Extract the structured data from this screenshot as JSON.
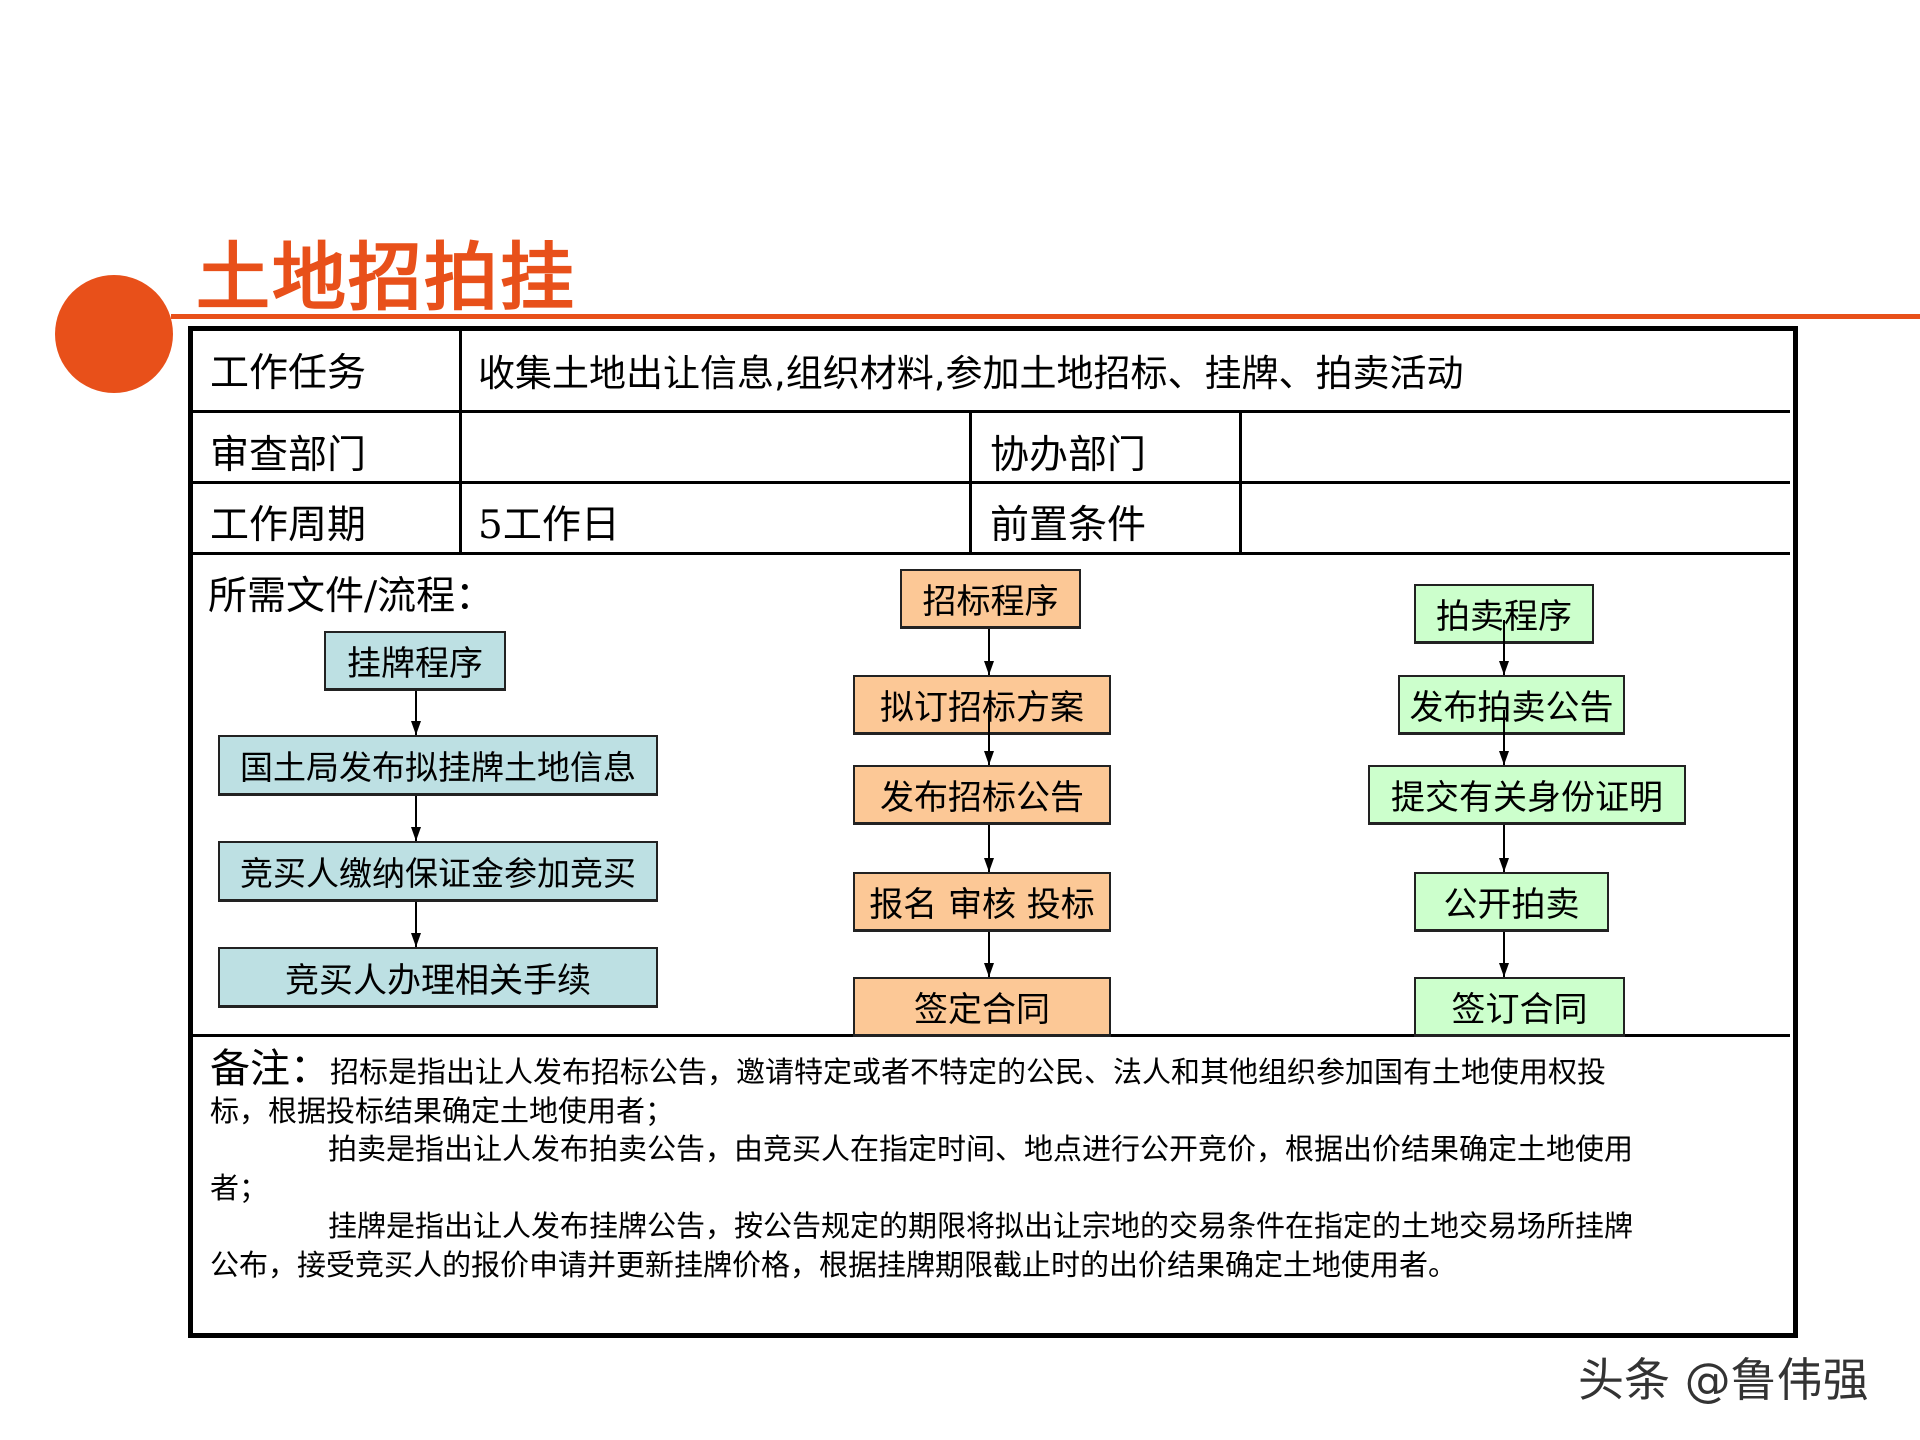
{
  "title": "土地招拍挂",
  "table": {
    "task_label": "工作任务",
    "task_value": "收集土地出让信息,组织材料,参加土地招标、挂牌、拍卖活动",
    "review_dept_label": "审查部门",
    "review_dept_value": "",
    "assist_dept_label": "协办部门",
    "assist_dept_value": "",
    "cycle_label": "工作周期",
    "cycle_value": "5工作日",
    "precondition_label": "前置条件",
    "precondition_value": "",
    "docs_label": "所需文件/流程："
  },
  "flows": {
    "listing": [
      "挂牌程序",
      "国土局发布拟挂牌土地信息",
      "竞买人缴纳保证金参加竞买",
      "竞买人办理相关手续"
    ],
    "tender": [
      "招标程序",
      "拟订招标方案",
      "发布招标公告",
      "报名 审核 投标",
      "签定合同"
    ],
    "auction": [
      "拍卖程序",
      "发布拍卖公告",
      "提交有关身份证明",
      "公开拍卖",
      "签订合同"
    ]
  },
  "colors": {
    "accent": "#e8501a",
    "listing": "#bde0e3",
    "tender": "#fcc896",
    "auction": "#ccffcc"
  },
  "notes": {
    "heading": "备注：",
    "lines": [
      "招标是指出让人发布招标公告，邀请特定或者不特定的公民、法人和其他组织参加国有土地使用权投",
      "标，根据投标结果确定土地使用者；",
      "拍卖是指出让人发布拍卖公告，由竞买人在指定时间、地点进行公开竞价，根据出价结果确定土地使用",
      "者；",
      "挂牌是指出让人发布挂牌公告，按公告规定的期限将拟出让宗地的交易条件在指定的土地交易场所挂牌",
      "公布，接受竞买人的报价申请并更新挂牌价格，根据挂牌期限截止时的出价结果确定土地使用者。"
    ]
  },
  "watermark": "头条 @鲁伟强"
}
